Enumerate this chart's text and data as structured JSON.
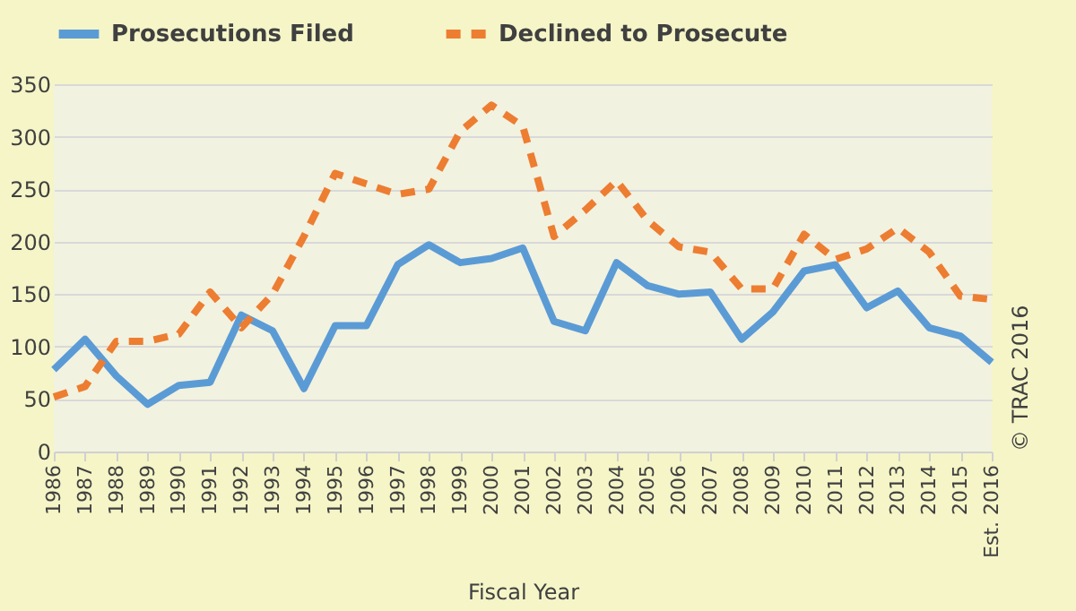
{
  "chart_data": {
    "type": "line",
    "xlabel": "Fiscal Year",
    "categories": [
      "1986",
      "1987",
      "1988",
      "1989",
      "1990",
      "1991",
      "1992",
      "1993",
      "1994",
      "1995",
      "1996",
      "1997",
      "1998",
      "1999",
      "2000",
      "2001",
      "2002",
      "2003",
      "2004",
      "2005",
      "2006",
      "2007",
      "2008",
      "2009",
      "2010",
      "2011",
      "2012",
      "2013",
      "2014",
      "2015",
      "Est. 2016"
    ],
    "series": [
      {
        "name": "Prosecutions Filed",
        "color": "#5b9bd5",
        "line_style": "solid",
        "values": [
          78,
          107,
          72,
          45,
          63,
          66,
          130,
          115,
          60,
          120,
          120,
          178,
          197,
          180,
          184,
          194,
          124,
          115,
          180,
          158,
          150,
          152,
          107,
          133,
          172,
          178,
          137,
          153,
          118,
          110,
          85
        ]
      },
      {
        "name": "Declined to Prosecute",
        "color": "#ed7d31",
        "line_style": "dashed",
        "values": [
          52,
          62,
          105,
          105,
          112,
          152,
          118,
          150,
          205,
          265,
          255,
          245,
          250,
          305,
          330,
          310,
          205,
          230,
          258,
          220,
          195,
          190,
          155,
          155,
          207,
          183,
          193,
          213,
          190,
          148,
          145
        ]
      }
    ],
    "ylim": [
      0,
      350
    ],
    "yticks": [
      0,
      50,
      100,
      150,
      200,
      250,
      300,
      350
    ],
    "grid": "y",
    "legend": "top",
    "marker": "none",
    "annotations": [
      "© TRAC 2016"
    ]
  }
}
